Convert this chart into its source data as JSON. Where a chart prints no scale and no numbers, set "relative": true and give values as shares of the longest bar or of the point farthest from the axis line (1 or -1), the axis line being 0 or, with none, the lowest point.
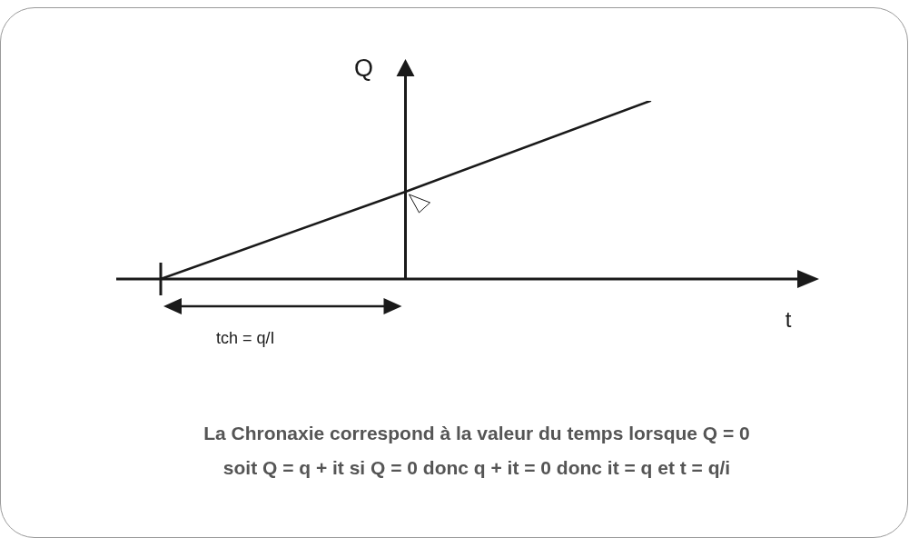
{
  "chart_data": {
    "type": "line",
    "xlabel": "t",
    "ylabel": "Q",
    "relative": true,
    "categories": [
      null,
      null,
      null
    ],
    "values": [
      0,
      0.49,
      1
    ],
    "color": "#1a1a1a",
    "annotations": [
      "tch = q/I",
      "La Chronaxie correspond à la valeur du temps lorsque Q = 0",
      "soit Q = q + it si Q = 0 donc q + it = 0 donc it = q et t = q/i"
    ]
  }
}
